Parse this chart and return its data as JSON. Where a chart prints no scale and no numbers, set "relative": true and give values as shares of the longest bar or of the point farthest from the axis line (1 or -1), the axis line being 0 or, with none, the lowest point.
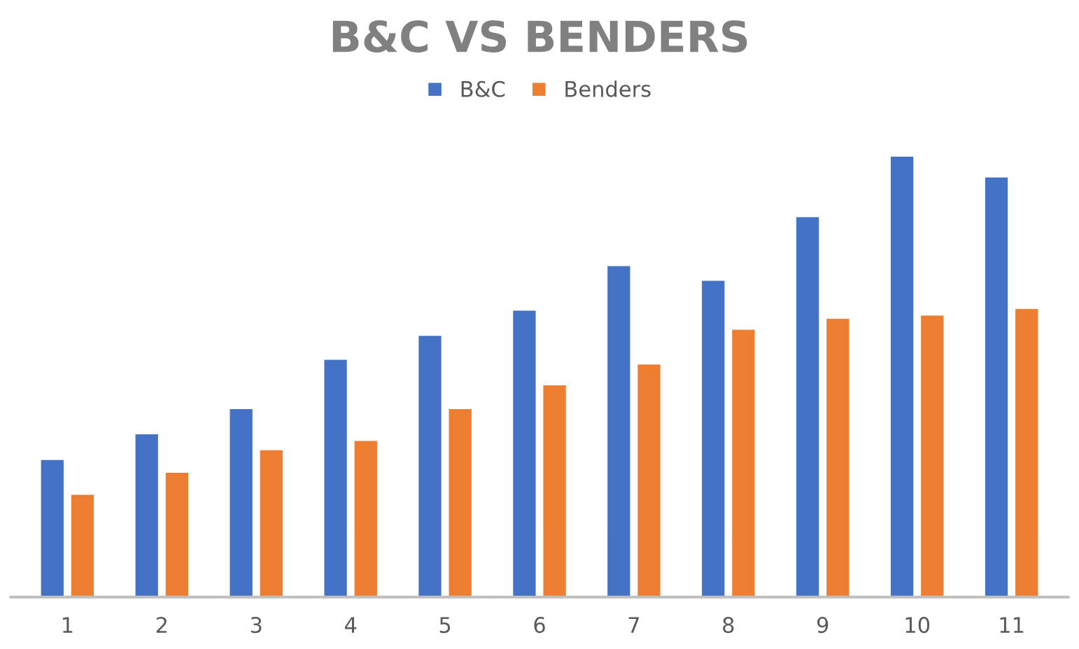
{
  "chart_data": {
    "type": "bar",
    "title": "B&C VS BENDERS",
    "relative": true,
    "legend": "top",
    "grid": false,
    "categories": [
      "1",
      "2",
      "3",
      "4",
      "5",
      "6",
      "7",
      "8",
      "9",
      "10",
      "11"
    ],
    "series": [
      {
        "name": "B&C",
        "color": "#4472c4",
        "values": [
          0.313,
          0.371,
          0.428,
          0.54,
          0.594,
          0.651,
          0.752,
          0.719,
          0.863,
          1.0,
          0.953
        ]
      },
      {
        "name": "Benders",
        "color": "#ed7d31",
        "values": [
          0.234,
          0.284,
          0.335,
          0.356,
          0.428,
          0.482,
          0.529,
          0.608,
          0.633,
          0.64,
          0.655
        ]
      }
    ]
  }
}
